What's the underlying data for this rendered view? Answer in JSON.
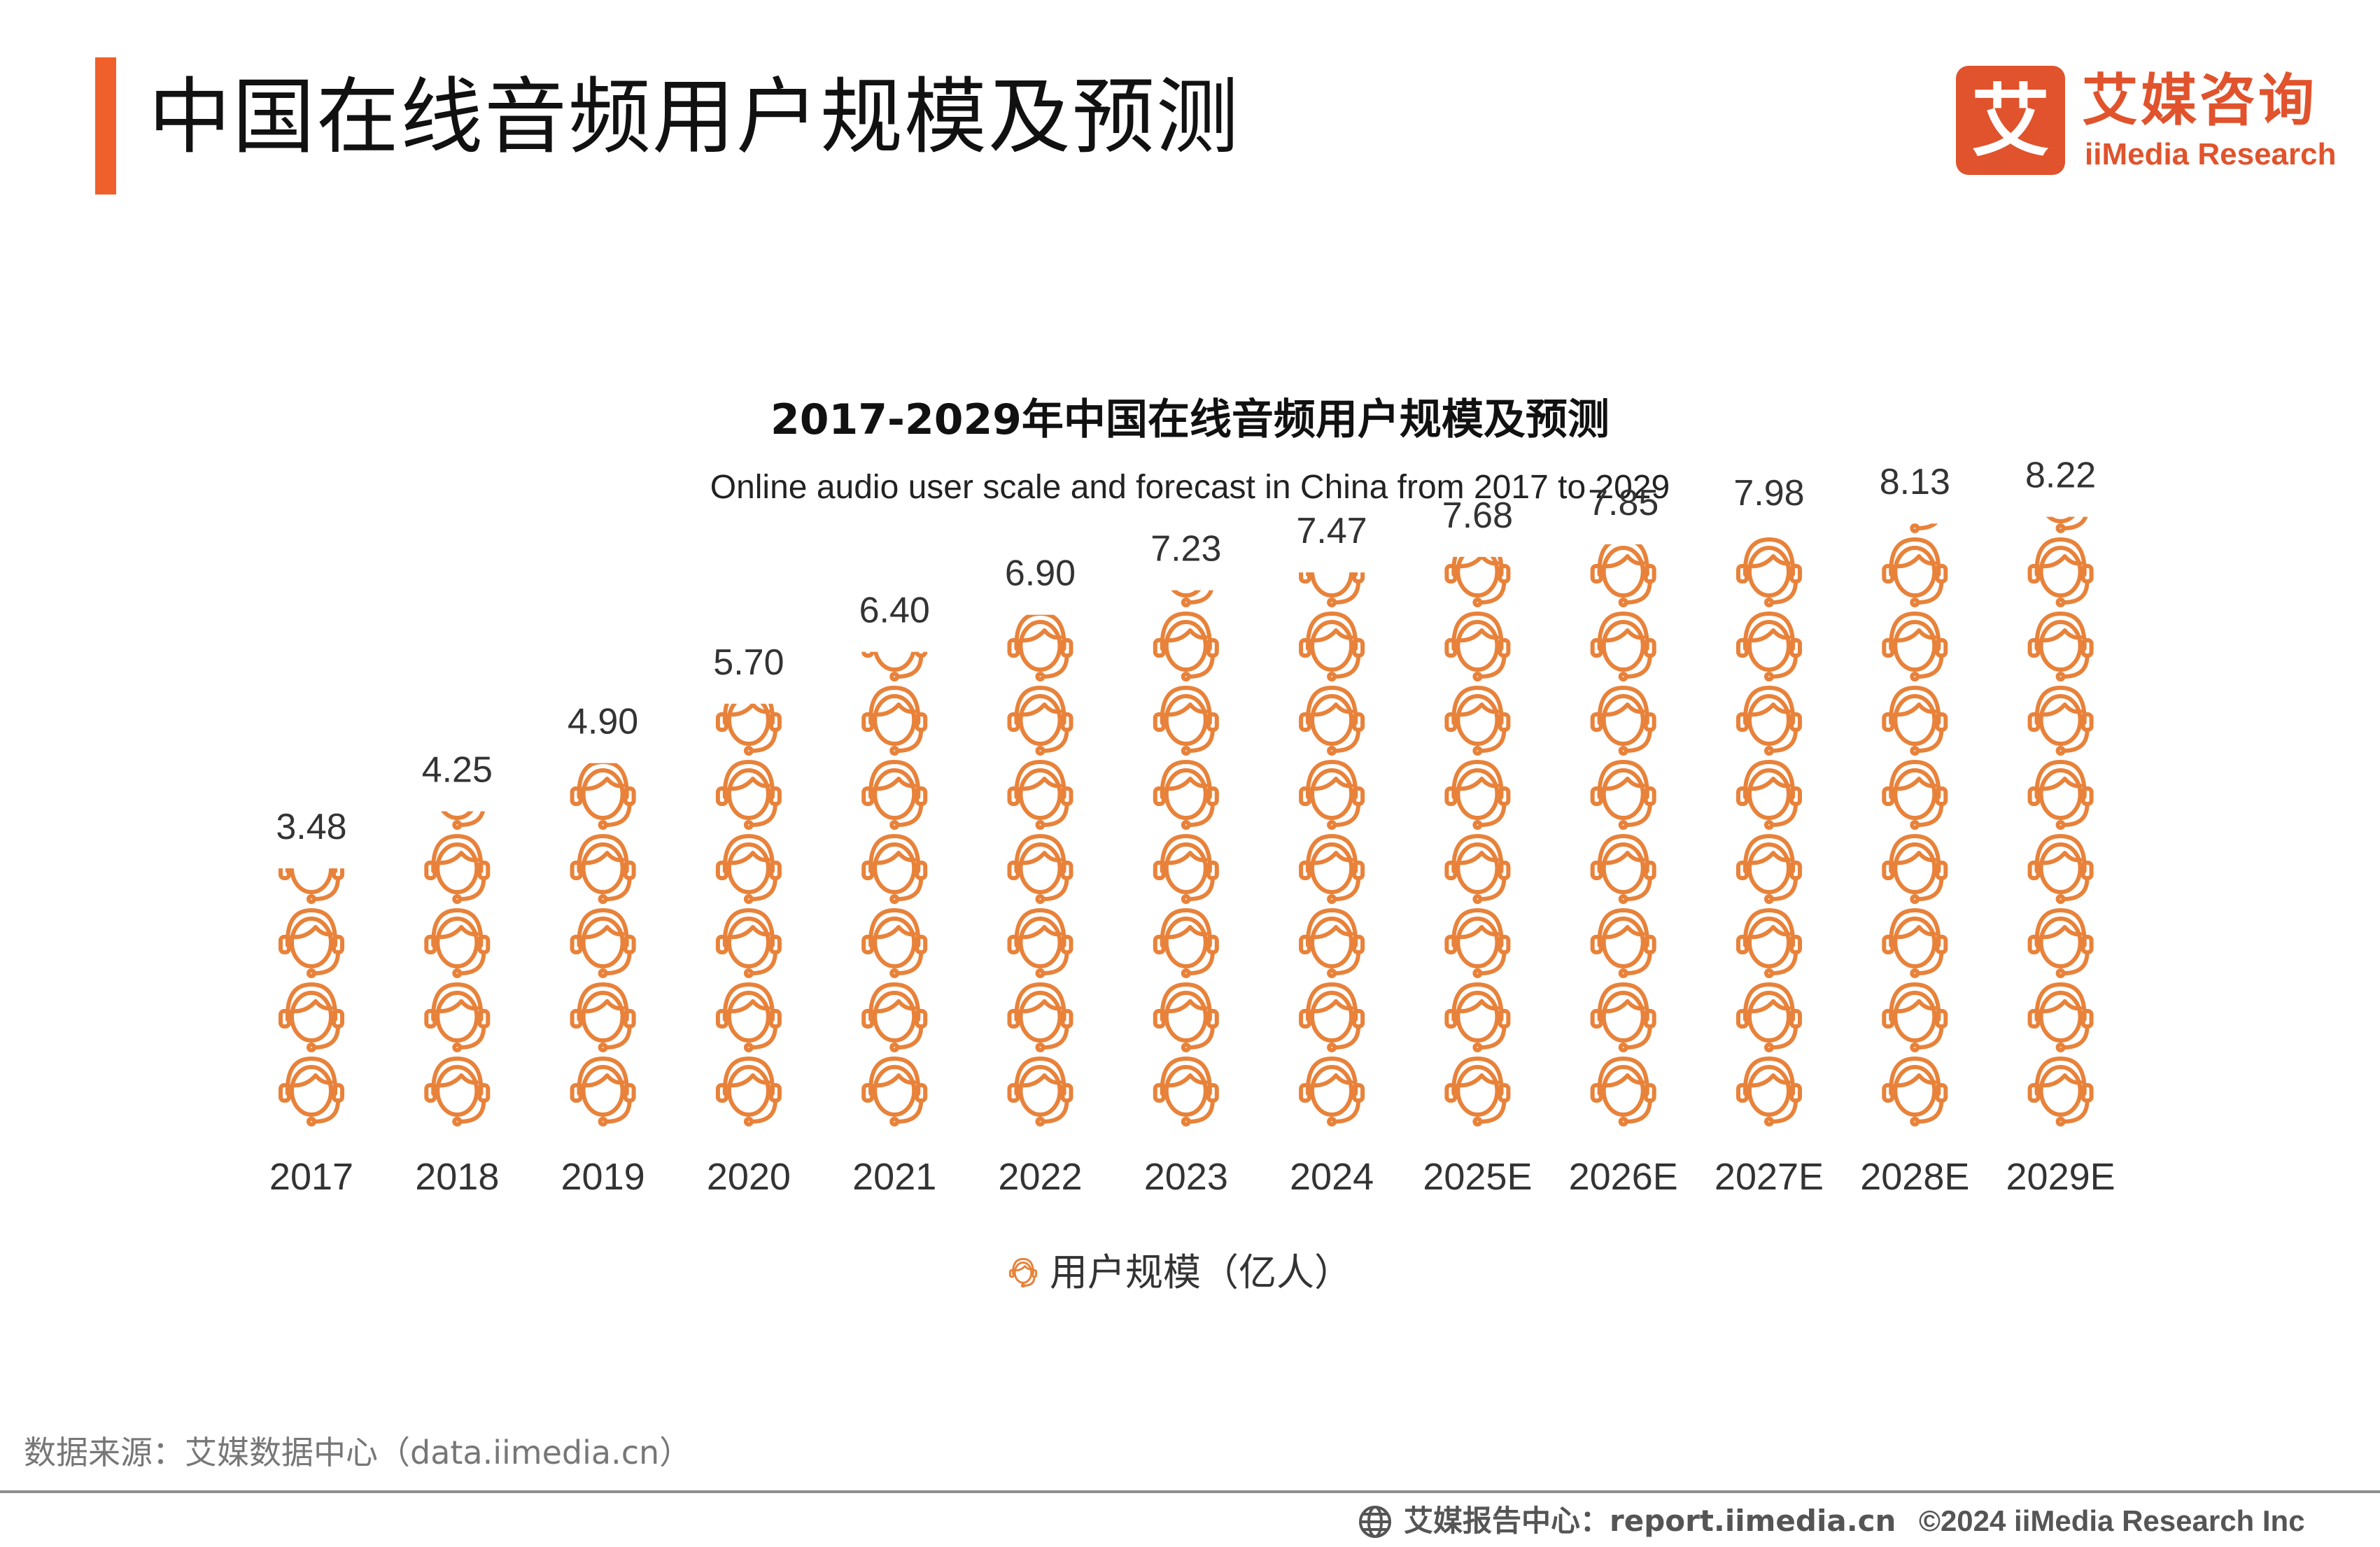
{
  "header": {
    "page_title": "中国在线音频用户规模及预测",
    "logo_cn": "艾媒咨询",
    "logo_en": "iiMedia Research",
    "logo_mark": "艾"
  },
  "chart_data": {
    "type": "pictograph-bar",
    "title": "2017-2029年中国在线音频用户规模及预测",
    "subtitle": "Online audio user scale and forecast in China from 2017 to 2029",
    "categories": [
      "2017",
      "2018",
      "2019",
      "2020",
      "2021",
      "2022",
      "2023",
      "2024",
      "2025E",
      "2026E",
      "2027E",
      "2028E",
      "2029E"
    ],
    "values": [
      3.48,
      4.25,
      4.9,
      5.7,
      6.4,
      6.9,
      7.23,
      7.47,
      7.68,
      7.85,
      7.98,
      8.13,
      8.22
    ],
    "value_labels": [
      "3.48",
      "4.25",
      "4.90",
      "5.70",
      "6.40",
      "6.90",
      "7.23",
      "7.47",
      "7.68",
      "7.85",
      "7.98",
      "8.13",
      "8.22"
    ],
    "symbol": "headset-user-icon",
    "units_per_symbol": 1,
    "series_name": "用户规模（亿人）",
    "ylim": [
      0,
      9
    ]
  },
  "colors": {
    "accent": "#f0602b",
    "symbol": "#e8823a",
    "brand": "#e0532c"
  },
  "footer": {
    "source": "数据来源：艾媒数据中心（data.iimedia.cn）",
    "report": "艾媒报告中心：report.iimedia.cn",
    "copyright": "©2024  iiMedia Research  Inc"
  }
}
